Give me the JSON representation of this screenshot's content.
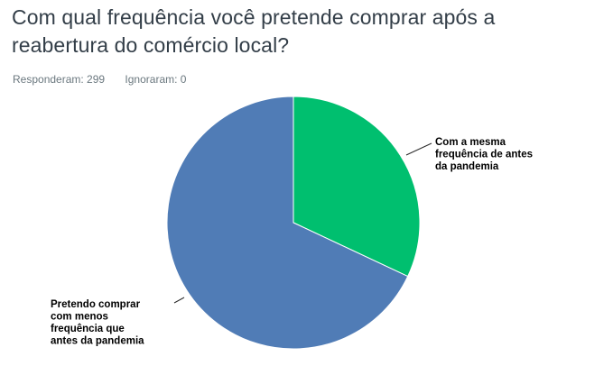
{
  "question": {
    "title": "Com qual frequência você pretende comprar após a reabertura do comércio local?"
  },
  "stats": {
    "answered_label": "Responderam: 299",
    "skipped_label": "Ignoraram: 0"
  },
  "colors": {
    "title": "#333e48",
    "stats": "#6b787f",
    "leader_line": "#2b2b2b"
  },
  "chart_data": {
    "type": "pie",
    "title": "",
    "legend": "none",
    "slices": [
      {
        "label": "Com a mesma frequência de antes da pandemia",
        "label_lines": [
          "Com a mesma",
          "frequência de antes",
          "da pandemia"
        ],
        "share": 0.32,
        "color": "#00bf6f"
      },
      {
        "label": "Pretendo comprar com menos frequência que antes da pandemia",
        "label_lines": [
          "Pretendo comprar",
          "com menos",
          "frequência que",
          "antes da pandemia"
        ],
        "share": 0.68,
        "color": "#507cb6"
      }
    ]
  }
}
